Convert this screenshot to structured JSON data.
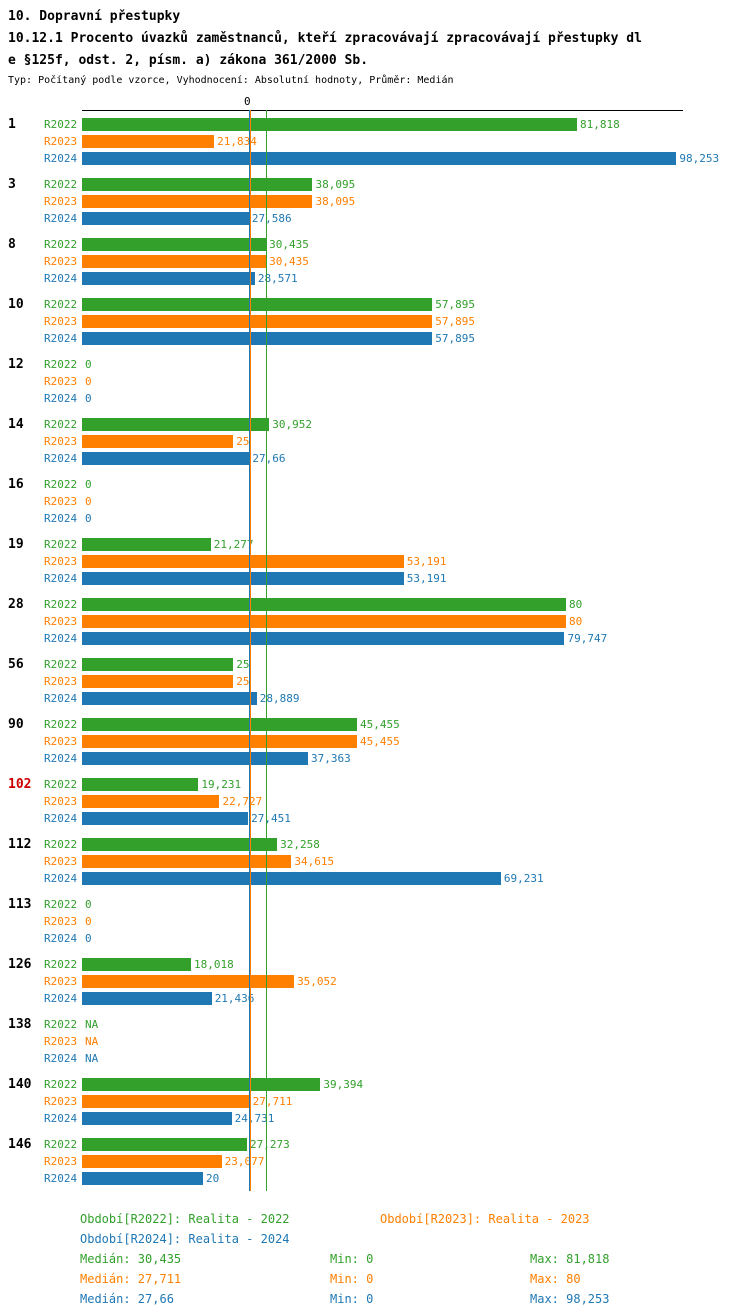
{
  "header": {
    "title": "10. Dopravní přestupky",
    "subtitle_line1": "10.12.1 Procento úvazků zaměstnanců, kteří zpracovávají zpracovávají přestupky dl",
    "subtitle_line2": "e §125f, odst. 2, písm. a) zákona 361/2000 Sb.",
    "meta": "Typ: Počítaný podle vzorce, Vyhodnocení: Absolutní hodnoty, Průměr: Medián"
  },
  "chart_data": {
    "type": "bar",
    "orientation": "horizontal",
    "axis_top_label": "0",
    "xlim": [
      0,
      99
    ],
    "highlight_color": "#cc0000",
    "series": [
      {
        "key": "R2022",
        "label": "R2022",
        "color": "#33a02c",
        "median": 30.435,
        "legend": "Období[R2022]: Realita - 2022",
        "stats": {
          "median": "Medián: 30,435",
          "min": "Min: 0",
          "max": "Max: 81,818"
        }
      },
      {
        "key": "R2023",
        "label": "R2023",
        "color": "#ff7f00",
        "median": 27.711,
        "legend": "Období[R2023]: Realita - 2023",
        "stats": {
          "median": "Medián: 27,711",
          "min": "Min: 0",
          "max": "Max: 80"
        }
      },
      {
        "key": "R2024",
        "label": "R2024",
        "color": "#1f78b4",
        "median": 27.66,
        "legend": "Období[R2024]: Realita - 2024",
        "stats": {
          "median": "Medián: 27,66",
          "min": "Min: 0",
          "max": "Max: 98,253"
        }
      }
    ],
    "groups": [
      {
        "id": "1",
        "highlight": false,
        "bars": [
          {
            "series": "R2022",
            "value": 81.818,
            "label": "81,818"
          },
          {
            "series": "R2023",
            "value": 21.834,
            "label": "21,834"
          },
          {
            "series": "R2024",
            "value": 98.253,
            "label": "98,253"
          }
        ]
      },
      {
        "id": "3",
        "highlight": false,
        "bars": [
          {
            "series": "R2022",
            "value": 38.095,
            "label": "38,095"
          },
          {
            "series": "R2023",
            "value": 38.095,
            "label": "38,095"
          },
          {
            "series": "R2024",
            "value": 27.586,
            "label": "27,586"
          }
        ]
      },
      {
        "id": "8",
        "highlight": false,
        "bars": [
          {
            "series": "R2022",
            "value": 30.435,
            "label": "30,435"
          },
          {
            "series": "R2023",
            "value": 30.435,
            "label": "30,435"
          },
          {
            "series": "R2024",
            "value": 28.571,
            "label": "28,571"
          }
        ]
      },
      {
        "id": "10",
        "highlight": false,
        "bars": [
          {
            "series": "R2022",
            "value": 57.895,
            "label": "57,895"
          },
          {
            "series": "R2023",
            "value": 57.895,
            "label": "57,895"
          },
          {
            "series": "R2024",
            "value": 57.895,
            "label": "57,895"
          }
        ]
      },
      {
        "id": "12",
        "highlight": false,
        "bars": [
          {
            "series": "R2022",
            "value": 0,
            "label": "0"
          },
          {
            "series": "R2023",
            "value": 0,
            "label": "0"
          },
          {
            "series": "R2024",
            "value": 0,
            "label": "0"
          }
        ]
      },
      {
        "id": "14",
        "highlight": false,
        "bars": [
          {
            "series": "R2022",
            "value": 30.952,
            "label": "30,952"
          },
          {
            "series": "R2023",
            "value": 25,
            "label": "25"
          },
          {
            "series": "R2024",
            "value": 27.66,
            "label": "27,66"
          }
        ]
      },
      {
        "id": "16",
        "highlight": false,
        "bars": [
          {
            "series": "R2022",
            "value": 0,
            "label": "0"
          },
          {
            "series": "R2023",
            "value": 0,
            "label": "0"
          },
          {
            "series": "R2024",
            "value": 0,
            "label": "0"
          }
        ]
      },
      {
        "id": "19",
        "highlight": false,
        "bars": [
          {
            "series": "R2022",
            "value": 21.277,
            "label": "21,277"
          },
          {
            "series": "R2023",
            "value": 53.191,
            "label": "53,191"
          },
          {
            "series": "R2024",
            "value": 53.191,
            "label": "53,191"
          }
        ]
      },
      {
        "id": "28",
        "highlight": false,
        "bars": [
          {
            "series": "R2022",
            "value": 80,
            "label": "80"
          },
          {
            "series": "R2023",
            "value": 80,
            "label": "80"
          },
          {
            "series": "R2024",
            "value": 79.747,
            "label": "79,747"
          }
        ]
      },
      {
        "id": "56",
        "highlight": false,
        "bars": [
          {
            "series": "R2022",
            "value": 25,
            "label": "25"
          },
          {
            "series": "R2023",
            "value": 25,
            "label": "25"
          },
          {
            "series": "R2024",
            "value": 28.889,
            "label": "28,889"
          }
        ]
      },
      {
        "id": "90",
        "highlight": false,
        "bars": [
          {
            "series": "R2022",
            "value": 45.455,
            "label": "45,455"
          },
          {
            "series": "R2023",
            "value": 45.455,
            "label": "45,455"
          },
          {
            "series": "R2024",
            "value": 37.363,
            "label": "37,363"
          }
        ]
      },
      {
        "id": "102",
        "highlight": true,
        "bars": [
          {
            "series": "R2022",
            "value": 19.231,
            "label": "19,231"
          },
          {
            "series": "R2023",
            "value": 22.727,
            "label": "22,727"
          },
          {
            "series": "R2024",
            "value": 27.451,
            "label": "27,451"
          }
        ]
      },
      {
        "id": "112",
        "highlight": false,
        "bars": [
          {
            "series": "R2022",
            "value": 32.258,
            "label": "32,258"
          },
          {
            "series": "R2023",
            "value": 34.615,
            "label": "34,615"
          },
          {
            "series": "R2024",
            "value": 69.231,
            "label": "69,231"
          }
        ]
      },
      {
        "id": "113",
        "highlight": false,
        "bars": [
          {
            "series": "R2022",
            "value": 0,
            "label": "0"
          },
          {
            "series": "R2023",
            "value": 0,
            "label": "0"
          },
          {
            "series": "R2024",
            "value": 0,
            "label": "0"
          }
        ]
      },
      {
        "id": "126",
        "highlight": false,
        "bars": [
          {
            "series": "R2022",
            "value": 18.018,
            "label": "18,018"
          },
          {
            "series": "R2023",
            "value": 35.052,
            "label": "35,052"
          },
          {
            "series": "R2024",
            "value": 21.436,
            "label": "21,436"
          }
        ]
      },
      {
        "id": "138",
        "highlight": false,
        "bars": [
          {
            "series": "R2022",
            "value": null,
            "label": "NA"
          },
          {
            "series": "R2023",
            "value": null,
            "label": "NA"
          },
          {
            "series": "R2024",
            "value": null,
            "label": "NA"
          }
        ]
      },
      {
        "id": "140",
        "highlight": false,
        "bars": [
          {
            "series": "R2022",
            "value": 39.394,
            "label": "39,394"
          },
          {
            "series": "R2023",
            "value": 27.711,
            "label": "27,711"
          },
          {
            "series": "R2024",
            "value": 24.731,
            "label": "24,731"
          }
        ]
      },
      {
        "id": "146",
        "highlight": false,
        "bars": [
          {
            "series": "R2022",
            "value": 27.273,
            "label": "27,273"
          },
          {
            "series": "R2023",
            "value": 23.077,
            "label": "23,077"
          },
          {
            "series": "R2024",
            "value": 20,
            "label": "20"
          }
        ]
      }
    ]
  }
}
